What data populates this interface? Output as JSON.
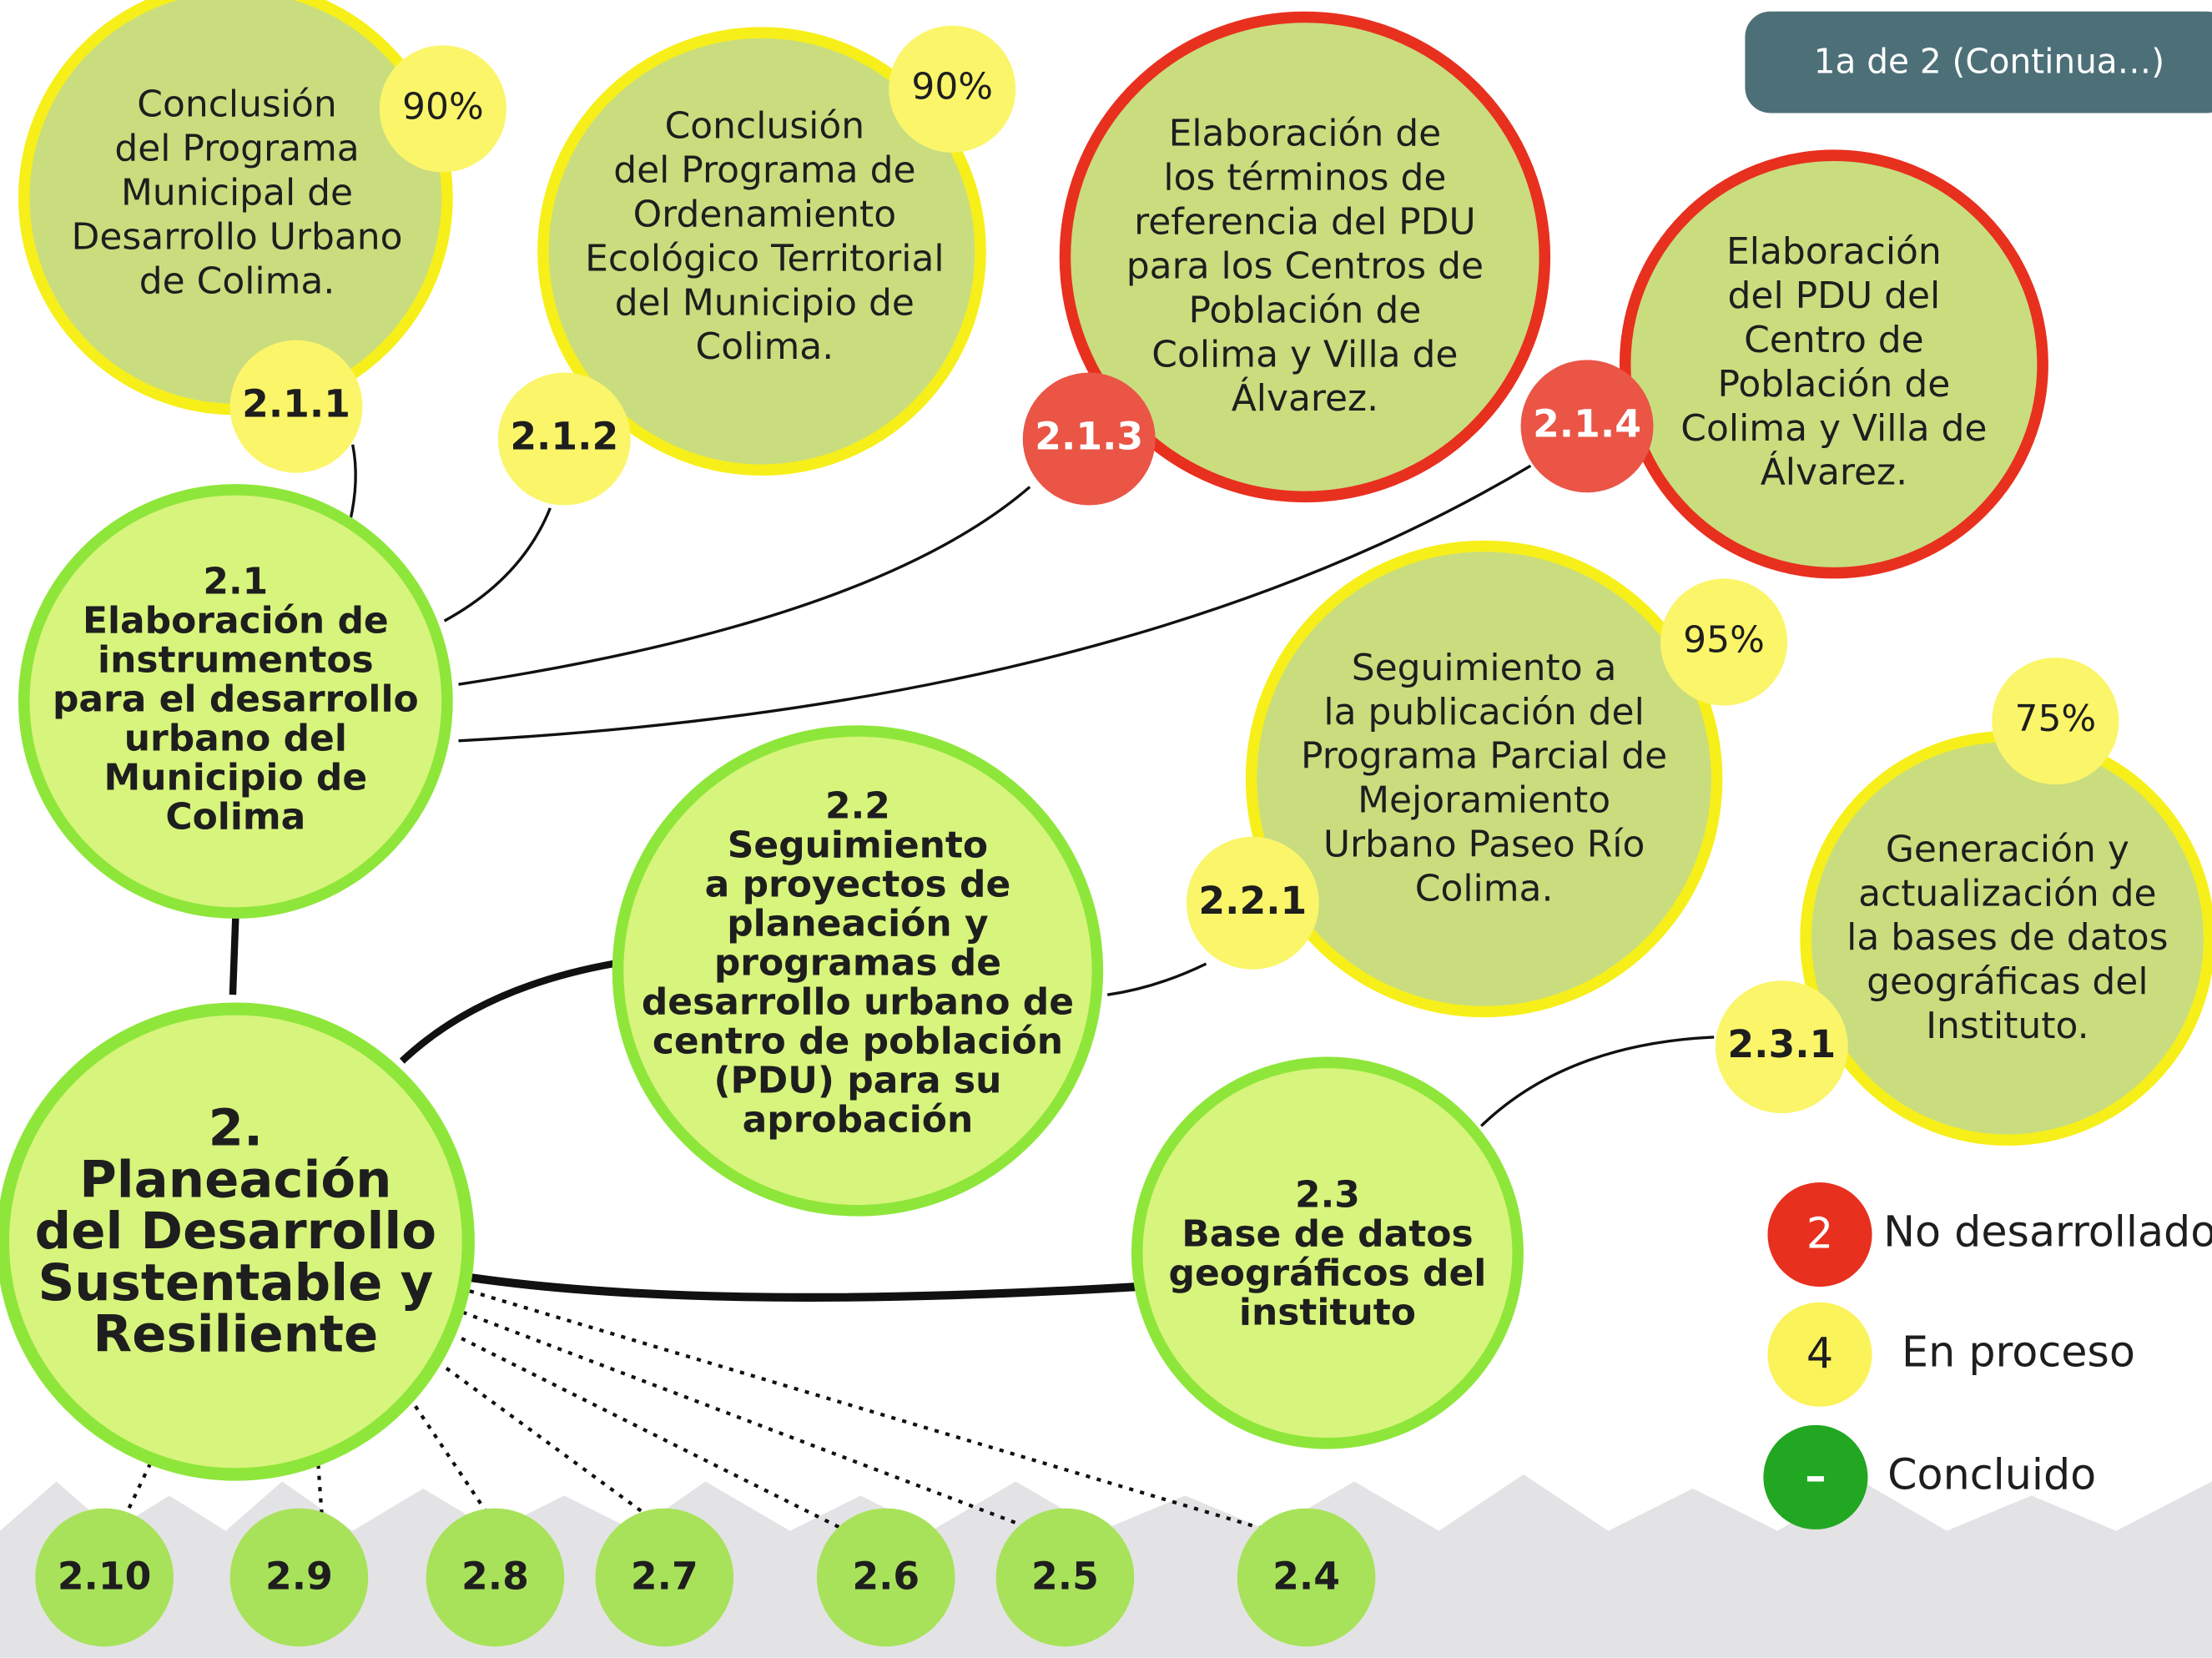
{
  "badge": "1a de 2 (Continua…)",
  "root": {
    "id": "2.",
    "lines": [
      "Planeación",
      "del Desarrollo",
      "Sustentable y",
      "Resiliente"
    ]
  },
  "objectives": [
    {
      "id": "2.1",
      "lines": [
        "Elaboración de",
        "instrumentos",
        "para el desarrollo",
        "urbano del",
        "Municipio de",
        "Colima"
      ]
    },
    {
      "id": "2.2",
      "lines": [
        "Seguimiento",
        "a proyectos de",
        "planeación y",
        "programas de",
        "desarrollo urbano de",
        "centro de población",
        "(PDU) para su",
        "aprobación"
      ]
    },
    {
      "id": "2.3",
      "lines": [
        "Base de datos",
        "geográficos del",
        "instituto"
      ]
    }
  ],
  "actions": [
    {
      "id": "2.1.1",
      "progress": "90%",
      "color": "#f7ef1a",
      "lines": [
        "Conclusión",
        "del Programa",
        "Municipal de",
        "Desarrollo Urbano",
        "de Colima."
      ]
    },
    {
      "id": "2.1.2",
      "progress": "90%",
      "color": "#f7ef1a",
      "lines": [
        "Conclusión",
        "del Programa de",
        "Ordenamiento",
        "Ecológico Territorial",
        "del Municipio de",
        "Colima."
      ]
    },
    {
      "id": "2.1.3",
      "color": "#e8301f",
      "lines": [
        "Elaboración de",
        "los términos de",
        "referencia del PDU",
        "para los Centros de",
        "Población de",
        "Colima y Villa de",
        "Álvarez."
      ]
    },
    {
      "id": "2.1.4",
      "color": "#e8301f",
      "lines": [
        "Elaboración",
        "del PDU del",
        "Centro de",
        "Población de",
        "Colima y Villa de",
        "Álvarez."
      ]
    },
    {
      "id": "2.2.1",
      "progress": "95%",
      "color": "#f7ef1a",
      "lines": [
        "Seguimiento a",
        "la publicación del",
        "Programa Parcial de",
        "Mejoramiento",
        "Urbano Paseo Río",
        "Colima."
      ]
    },
    {
      "id": "2.3.1",
      "progress": "75%",
      "color": "#f7ef1a",
      "lines": [
        "Generación y",
        "actualización de",
        "la bases de datos",
        "geográficas del",
        "Instituto."
      ]
    }
  ],
  "pending": [
    "2.10",
    "2.9",
    "2.8",
    "2.7",
    "2.6",
    "2.5",
    "2.4"
  ],
  "legend": [
    {
      "count": "2",
      "label": "No desarrollado",
      "color": "#e8301f"
    },
    {
      "count": "4",
      "label": "En proceso",
      "color": "#fbf35a"
    },
    {
      "count": "–",
      "label": "Concluido",
      "color": "#22a722"
    }
  ]
}
